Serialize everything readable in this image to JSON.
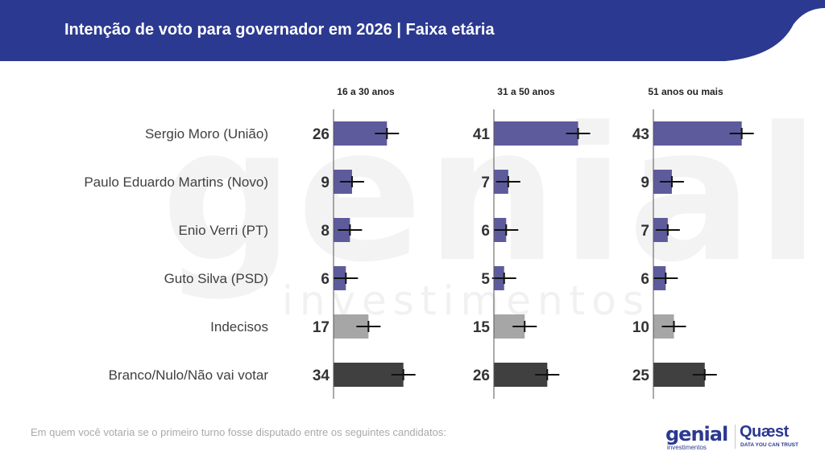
{
  "header": {
    "title": "Intenção de voto para governador em 2026 | Faixa etária",
    "background_color": "#2b3990"
  },
  "watermark": {
    "big": "genial",
    "small": "investimentos"
  },
  "colors": {
    "candidate": "#5e5b9c",
    "undecided": "#a6a6a6",
    "blank": "#404040",
    "error_bar": "#111111"
  },
  "chart_data": {
    "type": "bar",
    "orientation": "horizontal",
    "categories": [
      "Sergio Moro (União)",
      "Paulo Eduardo Martins (Novo)",
      "Enio Verri (PT)",
      "Guto Silva (PSD)",
      "Indecisos",
      "Branco/Nulo/Não vai votar"
    ],
    "series": [
      {
        "name": "16 a 30 anos",
        "values": [
          26,
          9,
          8,
          6,
          17,
          34
        ]
      },
      {
        "name": "31 a 50 anos",
        "values": [
          41,
          7,
          6,
          5,
          15,
          26
        ]
      },
      {
        "name": "51 anos ou mais",
        "values": [
          43,
          9,
          7,
          6,
          10,
          25
        ]
      }
    ],
    "error_bars": true,
    "grid": false,
    "legend": "none"
  },
  "footer": {
    "note": "Em quem você votaria se o primeiro turno fosse disputado entre os seguintes candidatos:",
    "logo_genial": "genial",
    "logo_genial_sub": "investimentos",
    "logo_quaest": "Quæst",
    "logo_quaest_sub": "DATA YOU CAN TRUST"
  }
}
